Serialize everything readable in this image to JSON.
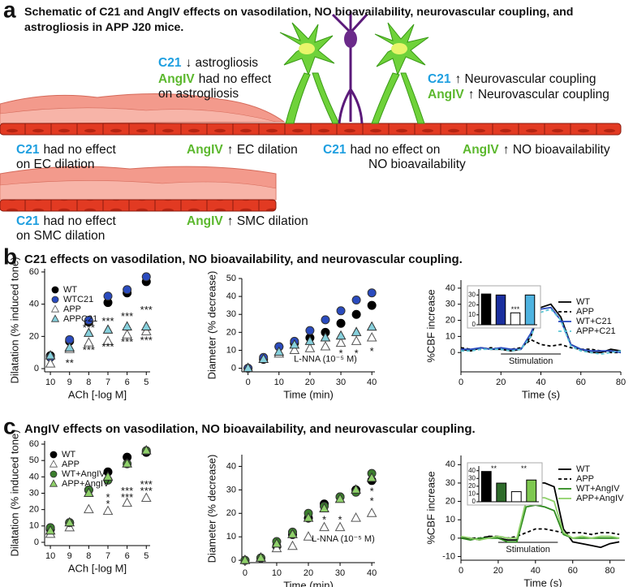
{
  "panel_labels": [
    "a",
    "b",
    "c"
  ],
  "schematic": {
    "title": "Schematic of C21 and AngIV effects on vasodilation, NO bioavailability, neurovascular coupling, and astrogliosis in APP J20 mice.",
    "agent_colors": {
      "C21": "#1e9fe0",
      "AngIV": "#5cb82e"
    },
    "labels": [
      {
        "agent": "C21",
        "lines": [
          "↓ astrogliosis"
        ]
      },
      {
        "agent": "AngIV",
        "lines": [
          "had no effect",
          "on astrogliosis"
        ]
      },
      {
        "agent": "C21",
        "lines": [
          "↑ Neurovascular coupling"
        ]
      },
      {
        "agent": "AngIV",
        "lines": [
          "↑ Neurovascular coupling"
        ]
      },
      {
        "agent": "C21",
        "lines": [
          "had no effect",
          "on EC dilation"
        ]
      },
      {
        "agent": "AngIV",
        "lines": [
          "↑ EC dilation"
        ]
      },
      {
        "agent": "C21",
        "lines": [
          "had no effect on",
          "NO bioavailability"
        ]
      },
      {
        "agent": "AngIV",
        "lines": [
          "↑ NO bioavailability"
        ]
      },
      {
        "agent": "C21",
        "lines": [
          "had no effect",
          "on SMC dilation"
        ]
      },
      {
        "agent": "AngIV",
        "lines": [
          "↑ SMC dilation"
        ]
      }
    ]
  },
  "panel_b_title": "C21 effects on vasodilation, NO bioavailability, and neurovascular coupling.",
  "panel_c_title": "AngIV effects on vasodilation, NO bioavailability, and neurovascular coupling.",
  "chart_data": [
    {
      "type": "line",
      "markers": true,
      "x_label": "ACh [-log M]",
      "y_label": "Dilatation (% induced tone)",
      "x": [
        10,
        9,
        8,
        7,
        6,
        5
      ],
      "xlim": [
        10.3,
        4.8
      ],
      "xticks": [
        10,
        9,
        8,
        7,
        6,
        5
      ],
      "ylim": [
        -2,
        62
      ],
      "yticks": [
        0,
        20,
        40,
        60
      ],
      "legend": "upper left",
      "series": [
        {
          "name": "WT",
          "color": "#000000",
          "marker": "circle",
          "values": [
            8,
            17,
            29,
            41,
            47,
            54
          ]
        },
        {
          "name": "WTC21",
          "color": "#2a4bbf",
          "marker": "circle",
          "values": [
            7,
            18,
            30,
            45,
            49,
            57
          ]
        },
        {
          "name": "APP",
          "color": "#ffffff",
          "marker": "triangle",
          "values": [
            3,
            12,
            16,
            17,
            21,
            23
          ]
        },
        {
          "name": "APPC21",
          "color": "#86d0dc",
          "marker": "triangle",
          "values": [
            8,
            13,
            22,
            24,
            26,
            26
          ]
        }
      ],
      "annotations": [
        {
          "text": "**",
          "x": 9,
          "y": 3
        },
        {
          "text": "***",
          "x": 8,
          "y": 25
        },
        {
          "text": "***",
          "x": 7,
          "y": 29
        },
        {
          "text": "***",
          "x": 6,
          "y": 32
        },
        {
          "text": "***",
          "x": 5,
          "y": 36
        },
        {
          "text": "***",
          "x": 8,
          "y": 11
        },
        {
          "text": "***",
          "x": 7,
          "y": 13
        },
        {
          "text": "***",
          "x": 6,
          "y": 16
        },
        {
          "text": "***",
          "x": 5,
          "y": 17
        }
      ]
    },
    {
      "type": "line",
      "markers": true,
      "x_label": "Time (min)",
      "y_label": "Diameter (% decrease)",
      "x": [
        0,
        5,
        10,
        15,
        20,
        25,
        30,
        35,
        40
      ],
      "xlim": [
        -2,
        41
      ],
      "xticks": [
        0,
        10,
        20,
        30,
        40
      ],
      "ylim": [
        -2,
        50
      ],
      "yticks": [
        0,
        10,
        20,
        30,
        40,
        50
      ],
      "legend": null,
      "series": [
        {
          "name": "WT",
          "color": "#000000",
          "marker": "circle",
          "values": [
            0,
            5,
            12,
            14,
            17,
            20,
            25,
            30,
            35
          ]
        },
        {
          "name": "WTC21",
          "color": "#2a4bbf",
          "marker": "circle",
          "values": [
            0,
            6,
            12,
            15,
            21,
            27,
            32,
            38,
            42
          ]
        },
        {
          "name": "APP",
          "color": "#ffffff",
          "marker": "triangle",
          "values": [
            0,
            5,
            8,
            10,
            11,
            12,
            14,
            15,
            17
          ]
        },
        {
          "name": "APPC21",
          "color": "#86d0dc",
          "marker": "triangle",
          "values": [
            0,
            5,
            9,
            13,
            15,
            17,
            18,
            20,
            23
          ]
        }
      ],
      "annotations": [
        {
          "text": "L-NNA (10⁻⁵ M)",
          "x": 25,
          "y": 5
        },
        {
          "text": "*",
          "x": 30,
          "y": 8
        },
        {
          "text": "*",
          "x": 35,
          "y": 8
        },
        {
          "text": "*",
          "x": 40,
          "y": 9
        }
      ]
    },
    {
      "type": "line",
      "markers": false,
      "x_label": "Time (s)",
      "y_label": "%CBF increase",
      "x": [
        0,
        5,
        10,
        15,
        20,
        25,
        30,
        35,
        40,
        45,
        50,
        55,
        60,
        65,
        70,
        75,
        80
      ],
      "xlim": [
        0,
        80
      ],
      "xticks": [
        0,
        20,
        40,
        60,
        80
      ],
      "ylim": [
        -12,
        45
      ],
      "yticks": [
        0,
        10,
        20,
        30,
        40
      ],
      "legend": "upper right",
      "stimulation": {
        "label": "Stimulation",
        "range": [
          20,
          50
        ]
      },
      "series": [
        {
          "name": "WT",
          "color": "#000000",
          "dash": false,
          "values": [
            2,
            1,
            3,
            2,
            2,
            1,
            2,
            10,
            28,
            30,
            22,
            5,
            2,
            0,
            0,
            2,
            1
          ]
        },
        {
          "name": "APP",
          "color": "#000000",
          "dash": true,
          "values": [
            3,
            2,
            2,
            3,
            2,
            2,
            3,
            8,
            5,
            4,
            5,
            3,
            2,
            2,
            1,
            0,
            0
          ]
        },
        {
          "name": "WT+C21",
          "color": "#2a4bbf",
          "dash": false,
          "values": [
            2,
            2,
            3,
            2,
            3,
            2,
            2,
            12,
            27,
            28,
            20,
            5,
            2,
            1,
            1,
            1,
            0
          ]
        },
        {
          "name": "APP+C21",
          "color": "#5cc6d6",
          "dash": true,
          "values": [
            1,
            1,
            2,
            2,
            2,
            1,
            2,
            10,
            25,
            27,
            20,
            4,
            1,
            0,
            -1,
            0,
            1
          ]
        }
      ],
      "inset": {
        "type": "bar",
        "values": [
          31,
          30,
          12,
          30
        ],
        "colors": [
          "#000000",
          "#1a2f9e",
          "#ffffff",
          "#4fb3e0"
        ],
        "ylim": [
          0,
          36
        ],
        "yticks": [
          0,
          10,
          20,
          30
        ],
        "annotations": [
          {
            "text": "***",
            "x": 2,
            "y": 15
          }
        ]
      }
    },
    {
      "type": "line",
      "markers": true,
      "x_label": "ACh [-log M]",
      "y_label": "Dilatation (% induced tone)",
      "x": [
        10,
        9,
        8,
        7,
        6,
        5
      ],
      "xlim": [
        10.3,
        4.8
      ],
      "xticks": [
        10,
        9,
        8,
        7,
        6,
        5
      ],
      "ylim": [
        -2,
        62
      ],
      "yticks": [
        0,
        10,
        20,
        30,
        40,
        50,
        60
      ],
      "legend": "upper left",
      "series": [
        {
          "name": "WT",
          "color": "#000000",
          "marker": "circle",
          "values": [
            8,
            12,
            32,
            43,
            52,
            55
          ]
        },
        {
          "name": "APP",
          "color": "#ffffff",
          "marker": "triangle",
          "values": [
            5,
            9,
            20,
            19,
            24,
            27
          ]
        },
        {
          "name": "WT+AngIV",
          "color": "#3a7d2c",
          "marker": "circle",
          "values": [
            9,
            12,
            32,
            38,
            48,
            56
          ]
        },
        {
          "name": "APP+AngIV",
          "color": "#8fd16a",
          "marker": "triangle",
          "values": [
            7,
            12,
            30,
            40,
            48,
            56
          ]
        }
      ],
      "annotations": [
        {
          "text": "*",
          "x": 7,
          "y": 27
        },
        {
          "text": "*",
          "x": 7,
          "y": 23
        },
        {
          "text": "***",
          "x": 6,
          "y": 31
        },
        {
          "text": "***",
          "x": 6,
          "y": 27
        },
        {
          "text": "***",
          "x": 5,
          "y": 35
        },
        {
          "text": "***",
          "x": 5,
          "y": 31
        }
      ]
    },
    {
      "type": "line",
      "markers": true,
      "x_label": "Time (min)",
      "y_label": "Diameter (% decrease)",
      "x": [
        0,
        5,
        10,
        15,
        20,
        25,
        30,
        35,
        40
      ],
      "xlim": [
        -1,
        41
      ],
      "xticks": [
        0,
        10,
        20,
        30,
        40
      ],
      "ylim": [
        -1,
        45
      ],
      "yticks": [
        0,
        10,
        20,
        30,
        40
      ],
      "legend": null,
      "series": [
        {
          "name": "WT",
          "color": "#000000",
          "marker": "circle",
          "values": [
            0,
            1,
            6,
            11,
            18,
            24,
            27,
            30,
            34
          ]
        },
        {
          "name": "APP",
          "color": "#ffffff",
          "marker": "triangle",
          "values": [
            0,
            1,
            5,
            6,
            10,
            14,
            14,
            18,
            20
          ]
        },
        {
          "name": "WT+AngIV",
          "color": "#3a7d2c",
          "marker": "circle",
          "values": [
            0,
            1,
            8,
            12,
            20,
            23,
            27,
            29,
            37
          ]
        },
        {
          "name": "APP+AngIV",
          "color": "#8fd16a",
          "marker": "triangle",
          "values": [
            0,
            1,
            7,
            11,
            18,
            22,
            26,
            30,
            35
          ]
        }
      ],
      "annotations": [
        {
          "text": "L-NNA (10⁻⁵ M)",
          "x": 31,
          "y": 9
        },
        {
          "text": "*",
          "x": 25,
          "y": 17
        },
        {
          "text": "*",
          "x": 30,
          "y": 17
        },
        {
          "text": "*",
          "x": 40,
          "y": 29
        },
        {
          "text": "*",
          "x": 40,
          "y": 25
        }
      ]
    },
    {
      "type": "line",
      "markers": false,
      "x_label": "Time (s)",
      "y_label": "%CBF increase",
      "x": [
        0,
        5,
        10,
        15,
        20,
        25,
        30,
        35,
        40,
        45,
        50,
        55,
        60,
        65,
        70,
        75,
        80,
        85
      ],
      "xlim": [
        0,
        88
      ],
      "xticks": [
        0,
        20,
        40,
        60,
        80
      ],
      "ylim": [
        -12,
        45
      ],
      "yticks": [
        -10,
        0,
        10,
        20,
        30,
        40
      ],
      "legend": "upper right",
      "stimulation": {
        "label": "Stimulation",
        "range": [
          20,
          52
        ]
      },
      "series": [
        {
          "name": "WT",
          "color": "#000000",
          "dash": false,
          "values": [
            0,
            0,
            -1,
            1,
            0,
            -1,
            -1,
            20,
            30,
            30,
            28,
            5,
            -2,
            -3,
            -4,
            -5,
            -3,
            -2
          ]
        },
        {
          "name": "APP",
          "color": "#000000",
          "dash": true,
          "values": [
            0,
            0,
            0,
            1,
            1,
            0,
            1,
            3,
            5,
            5,
            4,
            3,
            3,
            3,
            2,
            3,
            3,
            2
          ]
        },
        {
          "name": "WT+AngIV",
          "color": "#2e8b1e",
          "dash": false,
          "values": [
            0,
            -1,
            0,
            0,
            0,
            -2,
            -2,
            17,
            18,
            17,
            15,
            2,
            0,
            0,
            0,
            0,
            0,
            0
          ]
        },
        {
          "name": "APP+AngIV",
          "color": "#8fd16a",
          "dash": false,
          "values": [
            1,
            0,
            -1,
            0,
            1,
            0,
            0,
            20,
            22,
            22,
            20,
            3,
            0,
            1,
            0,
            1,
            1,
            0
          ]
        }
      ],
      "inset": {
        "type": "bar",
        "values": [
          39,
          24,
          13,
          28
        ],
        "colors": [
          "#000000",
          "#2e6b2a",
          "#ffffff",
          "#7ec850"
        ],
        "ylim": [
          0,
          46
        ],
        "yticks": [
          0,
          10,
          20,
          30,
          40
        ],
        "annotations": [
          {
            "text": "**",
            "x": 0.5,
            "y": 42
          },
          {
            "text": "**",
            "x": 2.5,
            "y": 42
          }
        ]
      }
    }
  ]
}
